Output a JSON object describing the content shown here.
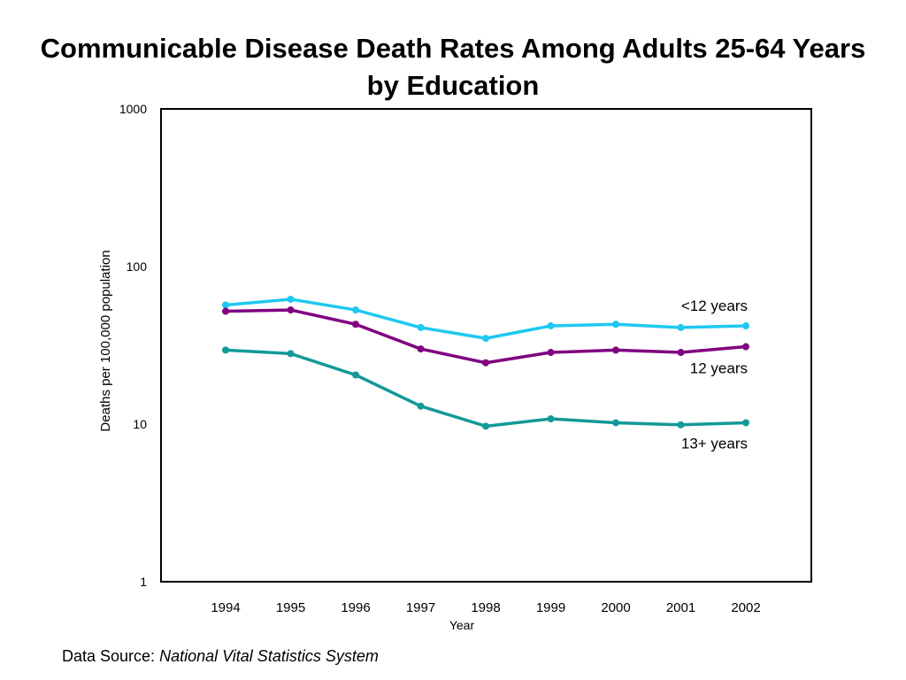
{
  "title_line1": "Communicable Disease Death Rates Among Adults 25-64 Years",
  "title_line2": "by Education",
  "source": {
    "label": "Data Source:",
    "name": "National Vital Statistics System"
  },
  "chart_data": {
    "type": "line",
    "title": "Communicable Disease Death Rates Among Adults 25-64 Years by Education",
    "xlabel": "Year",
    "ylabel": "Deaths per 100,000 population",
    "yscale": "log",
    "ylim": [
      1,
      1000
    ],
    "yticks": [
      1,
      10,
      100,
      1000
    ],
    "ytick_labels": [
      "1",
      "10",
      "100",
      "1000"
    ],
    "grid": false,
    "legend": "inline labels at right end of lines",
    "x": [
      "1994",
      "1995",
      "1996",
      "1997",
      "1998",
      "1999",
      "2000",
      "2001",
      "2002"
    ],
    "series": [
      {
        "name": "<12 years",
        "color": "#1ec8f0",
        "values": [
          57,
          62,
          53,
          41,
          35,
          42,
          43,
          41,
          42
        ]
      },
      {
        "name": "12 years",
        "color": "#800080",
        "values": [
          52,
          53,
          43,
          30,
          24.5,
          28.5,
          29.5,
          28.5,
          31
        ]
      },
      {
        "name": "13+ years",
        "color": "#139999",
        "values": [
          29.5,
          28,
          20.5,
          13,
          9.7,
          10.8,
          10.2,
          9.9,
          10.2
        ]
      }
    ]
  }
}
